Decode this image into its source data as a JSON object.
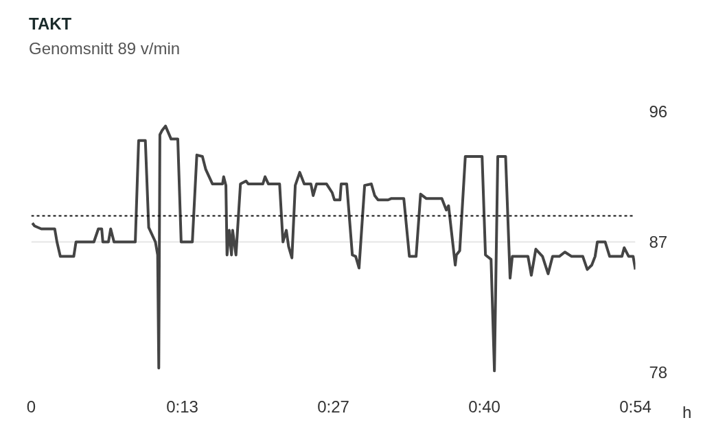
{
  "chart_data": {
    "type": "line",
    "title": "TAKT",
    "subtitle": "Genomsnitt 89 v/min",
    "xlabel": "h",
    "xlim": [
      0,
      54
    ],
    "xticks": [
      {
        "value": 0,
        "label": "0"
      },
      {
        "value": 13.5,
        "label": "0:13"
      },
      {
        "value": 27,
        "label": "0:27"
      },
      {
        "value": 40.5,
        "label": "0:40"
      },
      {
        "value": 54,
        "label": "0:54"
      }
    ],
    "ylim": [
      78,
      96
    ],
    "yticks": [
      78,
      87,
      96
    ],
    "grid": "y",
    "marker": "none",
    "line_style": "solid",
    "ref_lines": [
      {
        "axis": "y",
        "value": 88.8,
        "color": "#111111",
        "line_style": "dashed"
      }
    ],
    "series": [
      {
        "color": "#444444",
        "x": [
          0.1,
          0.3,
          0.9,
          2.1,
          2.3,
          2.6,
          3.8,
          4.0,
          5.6,
          6.0,
          6.3,
          6.4,
          6.9,
          7.1,
          7.4,
          9.3,
          9.6,
          10.2,
          10.5,
          11.1,
          11.3,
          11.4,
          11.5,
          11.7,
          12.0,
          12.5,
          13.1,
          13.4,
          14.4,
          14.8,
          15.3,
          15.6,
          16.2,
          17.1,
          17.2,
          17.4,
          17.5,
          17.7,
          17.9,
          18.0,
          18.3,
          18.7,
          19.2,
          19.4,
          20.7,
          20.9,
          21.2,
          22.2,
          22.5,
          22.8,
          23.0,
          23.3,
          23.6,
          24.0,
          24.4,
          25.0,
          25.2,
          25.5,
          26.4,
          26.9,
          27.1,
          27.6,
          27.7,
          28.2,
          28.7,
          29.0,
          29.3,
          29.8,
          30.4,
          30.7,
          31.0,
          31.9,
          32.2,
          33.3,
          33.8,
          34.4,
          34.8,
          35.3,
          36.7,
          37.1,
          37.3,
          37.9,
          38.0,
          38.3,
          38.8,
          40.3,
          40.6,
          41.1,
          41.4,
          41.7,
          42.4,
          42.8,
          43.0,
          44.4,
          44.7,
          45.1,
          45.7,
          46.2,
          46.6,
          47.2,
          47.7,
          48.3,
          49.3,
          49.7,
          50.1,
          50.4,
          50.6,
          51.3,
          51.7,
          52.8,
          53.0,
          53.4,
          53.8,
          54.0
        ],
        "values": [
          88.3,
          88.1,
          87.9,
          87.9,
          87.0,
          86.0,
          86.0,
          87.0,
          87.0,
          87.9,
          87.9,
          87.0,
          87.0,
          87.9,
          87.0,
          87.0,
          94.0,
          94.0,
          88.0,
          87.0,
          86.1,
          78.3,
          94.4,
          94.7,
          95.0,
          94.1,
          94.1,
          87.0,
          87.0,
          93.0,
          92.9,
          92.0,
          91.0,
          91.0,
          91.5,
          90.9,
          86.1,
          87.8,
          86.1,
          87.8,
          86.1,
          91.0,
          91.2,
          91.0,
          91.0,
          91.5,
          91.0,
          91.0,
          87.0,
          87.8,
          86.7,
          85.9,
          90.9,
          91.8,
          91.0,
          91.0,
          90.2,
          91.0,
          91.0,
          90.4,
          89.9,
          89.9,
          91.0,
          91.0,
          86.1,
          86.0,
          85.2,
          90.9,
          91.0,
          90.2,
          89.9,
          89.9,
          90.0,
          90.0,
          86.0,
          86.0,
          90.3,
          90.0,
          90.0,
          89.2,
          89.5,
          85.4,
          86.1,
          86.4,
          92.9,
          92.9,
          86.1,
          85.8,
          78.1,
          92.9,
          92.9,
          84.5,
          86.0,
          86.0,
          84.7,
          86.5,
          86.0,
          84.8,
          86.0,
          86.0,
          86.3,
          86.0,
          86.0,
          85.1,
          85.4,
          86.0,
          87.0,
          87.0,
          86.0,
          86.0,
          86.6,
          86.0,
          86.0,
          85.1
        ]
      }
    ]
  }
}
